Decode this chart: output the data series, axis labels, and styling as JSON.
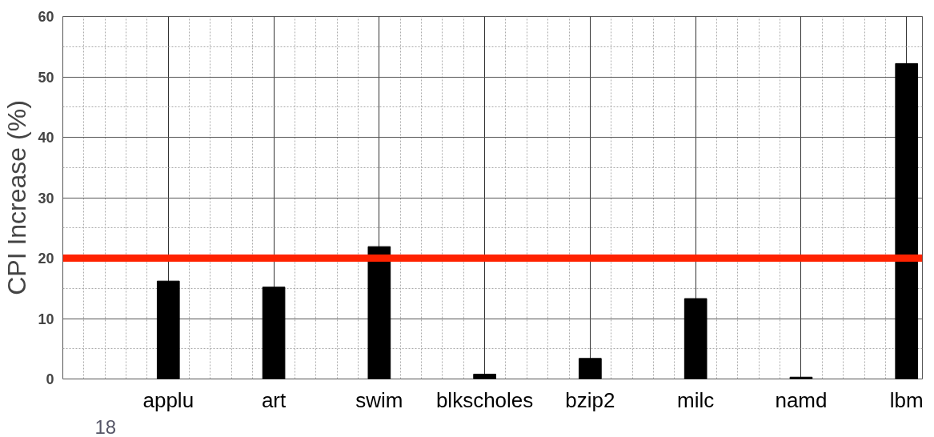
{
  "chart_data": {
    "type": "bar",
    "ylabel": "CPI Increase (%)",
    "categories": [
      "applu",
      "art",
      "swim",
      "blkscholes",
      "bzip2",
      "milc",
      "namd",
      "lbm"
    ],
    "values": [
      16.2,
      15.2,
      21.9,
      0.8,
      3.4,
      13.3,
      0.3,
      52.2
    ],
    "color": "#000000",
    "ylim": [
      0,
      60
    ],
    "yticks": [
      0,
      10,
      20,
      30,
      40,
      50,
      60
    ],
    "grid": true,
    "ref_lines": [
      {
        "axis": "y",
        "value": 20,
        "color": "#ff2200"
      }
    ],
    "annotations": [
      "18"
    ]
  }
}
